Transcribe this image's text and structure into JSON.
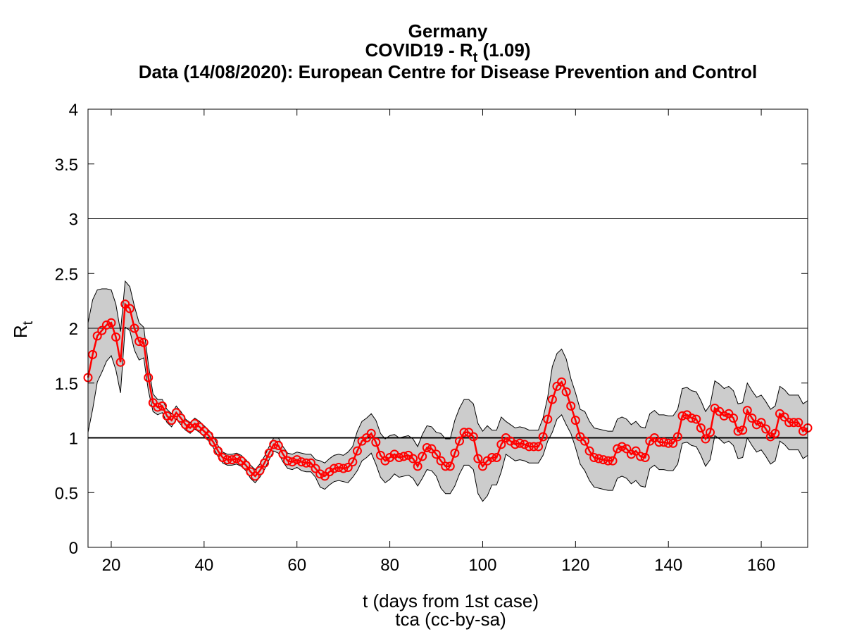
{
  "chart_data": {
    "type": "line",
    "title": "Germany",
    "subtitle_parts": [
      "COVID19 - R",
      "t",
      " (1.09)"
    ],
    "subtitle2": "Data (14/08/2020): European Centre for Disease Prevention and Control",
    "xlabel": "t (days from 1st case)",
    "footer": "tca (cc-by-sa)",
    "ylabel_parts": [
      "R",
      "t"
    ],
    "xlim": [
      15,
      170
    ],
    "xticks": [
      20,
      40,
      60,
      80,
      100,
      120,
      140,
      160
    ],
    "ylim": [
      0,
      4
    ],
    "yticks": [
      0,
      0.5,
      1,
      1.5,
      2,
      2.5,
      3,
      3.5,
      4
    ],
    "hlines": [
      1,
      2,
      3
    ],
    "x": [
      15,
      16,
      17,
      18,
      19,
      20,
      21,
      22,
      23,
      24,
      25,
      26,
      27,
      28,
      29,
      30,
      31,
      32,
      33,
      34,
      35,
      36,
      37,
      38,
      39,
      40,
      41,
      42,
      43,
      44,
      45,
      46,
      47,
      48,
      49,
      50,
      51,
      52,
      53,
      54,
      55,
      56,
      57,
      58,
      59,
      60,
      61,
      62,
      63,
      64,
      65,
      66,
      67,
      68,
      69,
      70,
      71,
      72,
      73,
      74,
      75,
      76,
      77,
      78,
      79,
      80,
      81,
      82,
      83,
      84,
      85,
      86,
      87,
      88,
      89,
      90,
      91,
      92,
      93,
      94,
      95,
      96,
      97,
      98,
      99,
      100,
      101,
      102,
      103,
      104,
      105,
      106,
      107,
      108,
      109,
      110,
      111,
      112,
      113,
      114,
      115,
      116,
      117,
      118,
      119,
      120,
      121,
      122,
      123,
      124,
      125,
      126,
      127,
      128,
      129,
      130,
      131,
      132,
      133,
      134,
      135,
      136,
      137,
      138,
      139,
      140,
      141,
      142,
      143,
      144,
      145,
      146,
      147,
      148,
      149,
      150,
      151,
      152,
      153,
      154,
      155,
      156,
      157,
      158,
      159,
      160,
      161,
      162,
      163,
      164,
      165,
      166,
      167,
      168,
      169,
      170
    ],
    "series": [
      {
        "color": "#ff0000",
        "values": [
          1.55,
          1.76,
          1.93,
          1.98,
          2.03,
          2.05,
          1.92,
          1.69,
          2.22,
          2.18,
          2.0,
          1.88,
          1.87,
          1.55,
          1.32,
          1.28,
          1.29,
          1.2,
          1.16,
          1.23,
          1.18,
          1.12,
          1.09,
          1.13,
          1.1,
          1.06,
          1.02,
          0.96,
          0.88,
          0.82,
          0.8,
          0.8,
          0.81,
          0.79,
          0.75,
          0.69,
          0.65,
          0.7,
          0.77,
          0.86,
          0.94,
          0.93,
          0.85,
          0.79,
          0.78,
          0.8,
          0.78,
          0.77,
          0.77,
          0.72,
          0.67,
          0.65,
          0.69,
          0.72,
          0.73,
          0.72,
          0.73,
          0.78,
          0.88,
          0.97,
          1.0,
          1.04,
          0.96,
          0.84,
          0.79,
          0.82,
          0.85,
          0.82,
          0.83,
          0.84,
          0.81,
          0.74,
          0.83,
          0.91,
          0.9,
          0.85,
          0.79,
          0.74,
          0.74,
          0.86,
          0.97,
          1.05,
          1.05,
          1.01,
          0.81,
          0.74,
          0.79,
          0.82,
          0.82,
          0.94,
          1.0,
          0.97,
          0.94,
          0.95,
          0.94,
          0.92,
          0.92,
          0.92,
          1.01,
          1.17,
          1.35,
          1.47,
          1.51,
          1.42,
          1.29,
          1.16,
          1.01,
          0.97,
          0.88,
          0.82,
          0.81,
          0.8,
          0.79,
          0.79,
          0.9,
          0.92,
          0.9,
          0.85,
          0.88,
          0.83,
          0.82,
          0.97,
          1.0,
          0.96,
          0.96,
          0.95,
          0.95,
          1.01,
          1.2,
          1.21,
          1.18,
          1.17,
          1.09,
          0.99,
          1.05,
          1.27,
          1.24,
          1.2,
          1.22,
          1.18,
          1.06,
          1.07,
          1.25,
          1.18,
          1.12,
          1.14,
          1.08,
          1.01,
          1.04,
          1.22,
          1.19,
          1.14,
          1.14,
          1.14,
          1.06,
          1.09
        ]
      }
    ],
    "band": {
      "color": "#cccccc",
      "lower": [
        1.05,
        1.26,
        1.51,
        1.6,
        1.7,
        1.75,
        1.62,
        1.41,
        2.01,
        1.98,
        1.8,
        1.71,
        1.73,
        1.43,
        1.24,
        1.21,
        1.23,
        1.14,
        1.1,
        1.17,
        1.12,
        1.07,
        1.04,
        1.08,
        1.05,
        1.01,
        0.97,
        0.91,
        0.83,
        0.77,
        0.75,
        0.75,
        0.76,
        0.74,
        0.7,
        0.63,
        0.59,
        0.64,
        0.71,
        0.8,
        0.88,
        0.86,
        0.78,
        0.72,
        0.71,
        0.73,
        0.7,
        0.69,
        0.69,
        0.64,
        0.55,
        0.53,
        0.57,
        0.6,
        0.61,
        0.6,
        0.59,
        0.64,
        0.7,
        0.79,
        0.82,
        0.86,
        0.76,
        0.64,
        0.59,
        0.62,
        0.67,
        0.64,
        0.65,
        0.66,
        0.63,
        0.56,
        0.63,
        0.71,
        0.7,
        0.65,
        0.54,
        0.49,
        0.49,
        0.56,
        0.67,
        0.75,
        0.75,
        0.71,
        0.49,
        0.42,
        0.47,
        0.57,
        0.57,
        0.69,
        0.85,
        0.82,
        0.79,
        0.8,
        0.79,
        0.77,
        0.77,
        0.77,
        0.84,
        0.97,
        1.05,
        1.17,
        1.21,
        1.12,
        1.04,
        0.91,
        0.76,
        0.7,
        0.61,
        0.55,
        0.54,
        0.53,
        0.52,
        0.52,
        0.63,
        0.65,
        0.63,
        0.58,
        0.61,
        0.56,
        0.55,
        0.72,
        0.75,
        0.71,
        0.71,
        0.7,
        0.7,
        0.76,
        0.95,
        0.96,
        0.93,
        0.92,
        0.84,
        0.74,
        0.8,
        1.02,
        0.99,
        0.95,
        0.97,
        0.93,
        0.81,
        0.82,
        1.0,
        0.93,
        0.87,
        0.89,
        0.83,
        0.76,
        0.79,
        0.97,
        0.94,
        0.89,
        0.89,
        0.89,
        0.81,
        0.84
      ],
      "upper": [
        2.05,
        2.26,
        2.35,
        2.36,
        2.36,
        2.35,
        2.22,
        1.97,
        2.43,
        2.38,
        2.2,
        2.05,
        2.01,
        1.67,
        1.4,
        1.35,
        1.35,
        1.26,
        1.22,
        1.29,
        1.24,
        1.17,
        1.14,
        1.18,
        1.15,
        1.11,
        1.07,
        1.01,
        0.93,
        0.87,
        0.85,
        0.85,
        0.86,
        0.84,
        0.8,
        0.75,
        0.71,
        0.76,
        0.83,
        0.92,
        1.0,
        1.0,
        0.92,
        0.86,
        0.85,
        0.87,
        0.86,
        0.85,
        0.85,
        0.8,
        0.79,
        0.77,
        0.81,
        0.84,
        0.85,
        0.84,
        0.87,
        0.92,
        1.06,
        1.15,
        1.18,
        1.22,
        1.16,
        1.04,
        0.99,
        1.02,
        1.03,
        1.0,
        1.01,
        1.02,
        0.99,
        0.92,
        1.03,
        1.11,
        1.1,
        1.05,
        1.04,
        0.99,
        0.99,
        1.16,
        1.27,
        1.35,
        1.35,
        1.31,
        1.13,
        1.06,
        1.11,
        1.07,
        1.07,
        1.19,
        1.15,
        1.12,
        1.09,
        1.1,
        1.09,
        1.07,
        1.07,
        1.07,
        1.18,
        1.37,
        1.65,
        1.77,
        1.81,
        1.72,
        1.54,
        1.41,
        1.26,
        1.24,
        1.15,
        1.09,
        1.08,
        1.07,
        1.06,
        1.06,
        1.17,
        1.19,
        1.17,
        1.12,
        1.15,
        1.1,
        1.09,
        1.22,
        1.25,
        1.21,
        1.21,
        1.2,
        1.2,
        1.26,
        1.45,
        1.46,
        1.43,
        1.42,
        1.34,
        1.24,
        1.3,
        1.52,
        1.49,
        1.45,
        1.47,
        1.43,
        1.31,
        1.32,
        1.5,
        1.43,
        1.37,
        1.39,
        1.33,
        1.26,
        1.29,
        1.47,
        1.44,
        1.39,
        1.39,
        1.39,
        1.31,
        1.34
      ]
    }
  }
}
